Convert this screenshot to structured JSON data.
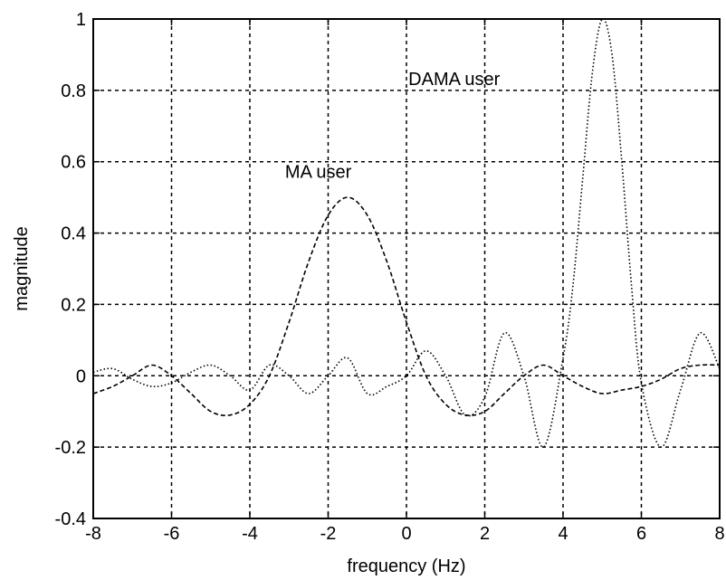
{
  "chart_data": {
    "type": "line",
    "title": "",
    "xlabel": "frequency (Hz)",
    "ylabel": "magnitude",
    "xlim": [
      -8,
      8
    ],
    "ylim": [
      -0.4,
      1
    ],
    "xticks": [
      -8,
      -6,
      -4,
      -2,
      0,
      2,
      4,
      6,
      8
    ],
    "yticks": [
      -0.4,
      -0.2,
      0,
      0.2,
      0.4,
      0.6,
      0.8,
      1
    ],
    "xtick_labels": [
      "-8",
      "-6",
      "-4",
      "-2",
      "0",
      "2",
      "4",
      "6",
      "8"
    ],
    "ytick_labels": [
      "-0.4",
      "-0.2",
      "0",
      "0.2",
      "0.4",
      "0.6",
      "0.8",
      "1"
    ],
    "grid": true,
    "series": [
      {
        "style": "dashed",
        "color": "#000000",
        "x": [
          -8,
          -7.5,
          -7,
          -6.5,
          -6,
          -5.5,
          -5,
          -4.5,
          -4,
          -3.5,
          -3,
          -2.5,
          -2,
          -1.5,
          -1,
          -0.5,
          0,
          0.5,
          1,
          1.5,
          2,
          2.5,
          3,
          3.5,
          4,
          4.5,
          5,
          5.5,
          6,
          6.5,
          7,
          7.5,
          8
        ],
        "y": [
          -0.05,
          -0.03,
          0.0,
          0.03,
          0.0,
          -0.05,
          -0.1,
          -0.11,
          -0.08,
          0.0,
          0.15,
          0.32,
          0.45,
          0.5,
          0.45,
          0.32,
          0.15,
          0.0,
          -0.08,
          -0.11,
          -0.1,
          -0.05,
          0.0,
          0.03,
          0.0,
          -0.03,
          -0.05,
          -0.04,
          -0.03,
          -0.01,
          0.02,
          0.03,
          0.03
        ]
      },
      {
        "style": "dotted",
        "color": "#000000",
        "x": [
          -8,
          -7.5,
          -7,
          -6.5,
          -6,
          -5.5,
          -5,
          -4.5,
          -4,
          -3.5,
          -3,
          -2.5,
          -2,
          -1.5,
          -1,
          -0.5,
          0,
          0.5,
          1,
          1.5,
          2,
          2.5,
          3,
          3.5,
          4,
          4.25,
          4.5,
          4.75,
          5,
          5.25,
          5.5,
          5.75,
          6,
          6.5,
          7,
          7.5,
          8
        ],
        "y": [
          0.01,
          0.02,
          -0.01,
          -0.03,
          -0.02,
          0.01,
          0.03,
          0.0,
          -0.04,
          0.03,
          0.0,
          -0.05,
          0.0,
          0.05,
          -0.05,
          -0.03,
          0.0,
          0.07,
          0.0,
          -0.11,
          -0.06,
          0.12,
          0.0,
          -0.2,
          0.05,
          0.25,
          0.55,
          0.85,
          1.0,
          0.9,
          0.6,
          0.25,
          -0.02,
          -0.2,
          -0.04,
          0.12,
          0.02
        ]
      }
    ],
    "annotations": [
      {
        "text": "MA user",
        "x": -3.1,
        "y": 0.555
      },
      {
        "text": "DAMA user",
        "x": 0.05,
        "y": 0.815
      }
    ]
  }
}
